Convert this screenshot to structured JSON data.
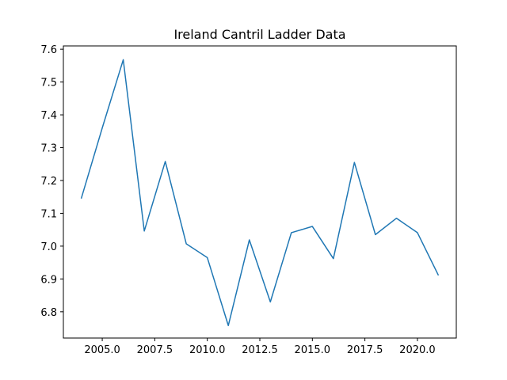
{
  "chart_data": {
    "type": "line",
    "title": "Ireland Cantril Ladder Data",
    "xlabel": "",
    "ylabel": "",
    "xlim": [
      2003.15,
      2021.85
    ],
    "ylim": [
      6.72,
      7.61
    ],
    "grid": false,
    "x_ticks": [
      2005.0,
      2007.5,
      2010.0,
      2012.5,
      2015.0,
      2017.5,
      2020.0
    ],
    "x_tick_labels": [
      "2005.0",
      "2007.5",
      "2010.0",
      "2012.5",
      "2015.0",
      "2017.5",
      "2020.0"
    ],
    "y_ticks": [
      6.8,
      6.9,
      7.0,
      7.1,
      7.2,
      7.3,
      7.4,
      7.5,
      7.6
    ],
    "y_tick_labels": [
      "6.8",
      "6.9",
      "7.0",
      "7.1",
      "7.2",
      "7.3",
      "7.4",
      "7.5",
      "7.6"
    ],
    "series": [
      {
        "color": "#1f77b4",
        "x": [
          2004,
          2005,
          2006,
          2007,
          2008,
          2009,
          2010,
          2011,
          2012,
          2013,
          2014,
          2015,
          2016,
          2017,
          2018,
          2019,
          2020,
          2021
        ],
        "y": [
          7.145,
          7.36,
          7.568,
          7.046,
          7.258,
          7.007,
          6.965,
          6.758,
          7.019,
          6.83,
          7.041,
          7.06,
          6.962,
          7.255,
          7.035,
          7.085,
          7.041,
          6.911
        ]
      }
    ]
  }
}
